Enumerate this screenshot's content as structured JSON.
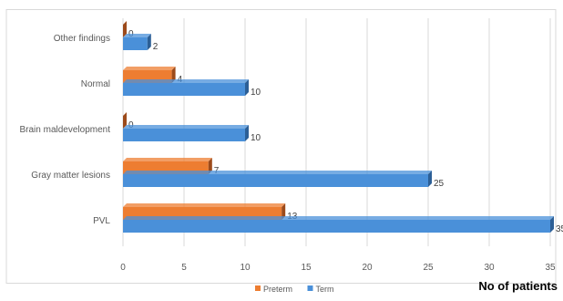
{
  "chart_data": {
    "type": "bar",
    "orientation": "horizontal",
    "categories": [
      "PVL",
      "Gray matter lesions",
      "Brain maldevelopment",
      "Normal",
      "Other findings"
    ],
    "series": [
      {
        "name": "Preterm",
        "values": [
          13,
          7,
          0,
          4,
          0
        ],
        "color": "#ed7d31",
        "side_color": "#9c4a1a"
      },
      {
        "name": "Term",
        "values": [
          35,
          25,
          10,
          10,
          2
        ],
        "color": "#4a90d9",
        "side_color": "#2c5f96"
      }
    ],
    "x_ticks": [
      "0",
      "5",
      "10",
      "15",
      "20",
      "25",
      "30",
      "35"
    ],
    "xlim": [
      0,
      35
    ],
    "xlabel": "No of patients",
    "grid": true,
    "legend_position": "bottom"
  }
}
